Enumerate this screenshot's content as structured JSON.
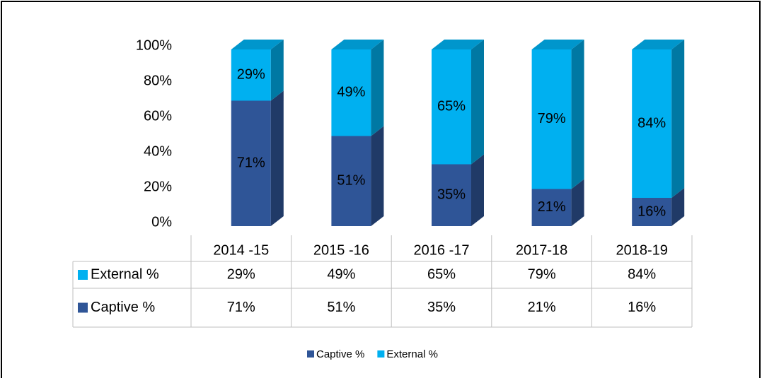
{
  "chart_data": {
    "type": "bar3d_stacked",
    "categories": [
      "2014 -15",
      "2015 -16",
      "2016 -17",
      "2017-18",
      "2018-19"
    ],
    "series": [
      {
        "name": "Captive %",
        "color": "#2f5597",
        "values": [
          71,
          51,
          35,
          21,
          16
        ],
        "value_labels": [
          "71%",
          "51%",
          "35%",
          "21%",
          "16%"
        ]
      },
      {
        "name": "External %",
        "color": "#00b0f0",
        "values": [
          29,
          49,
          65,
          79,
          84
        ],
        "value_labels": [
          "29%",
          "49%",
          "65%",
          "79%",
          "84%"
        ]
      }
    ],
    "ylim": [
      0,
      100
    ],
    "yticks": [
      {
        "value": 0,
        "label": "0%"
      },
      {
        "value": 20,
        "label": "20%"
      },
      {
        "value": 40,
        "label": "40%"
      },
      {
        "value": 60,
        "label": "60%"
      },
      {
        "value": 80,
        "label": "80%"
      },
      {
        "value": 100,
        "label": "100%"
      }
    ],
    "legend": "bottom",
    "data_table": true
  }
}
